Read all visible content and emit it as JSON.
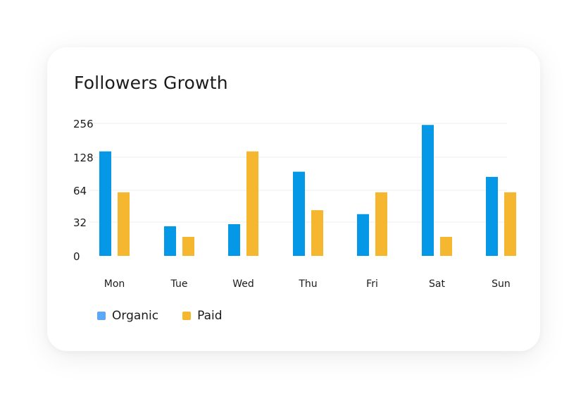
{
  "chart_data": {
    "type": "bar",
    "title": "Followers Growth",
    "categories": [
      "Mon",
      "Tue",
      "Wed",
      "Thu",
      "Fri",
      "Sat",
      "Sun"
    ],
    "y_ticks": [
      0,
      32,
      64,
      128,
      256
    ],
    "ylim": [
      0,
      256
    ],
    "y_scale": "piecewise-linear between labeled ticks",
    "grid": true,
    "legend_position": "bottom-left",
    "series": [
      {
        "name": "Organic",
        "color": "#0598e6",
        "legend_color": "#5ba8f4",
        "values": [
          150,
          28,
          30,
          100,
          40,
          250,
          90
        ]
      },
      {
        "name": "Paid",
        "color": "#f6b730",
        "legend_color": "#f6b730",
        "values": [
          62,
          18,
          150,
          44,
          62,
          18,
          62
        ]
      }
    ]
  }
}
